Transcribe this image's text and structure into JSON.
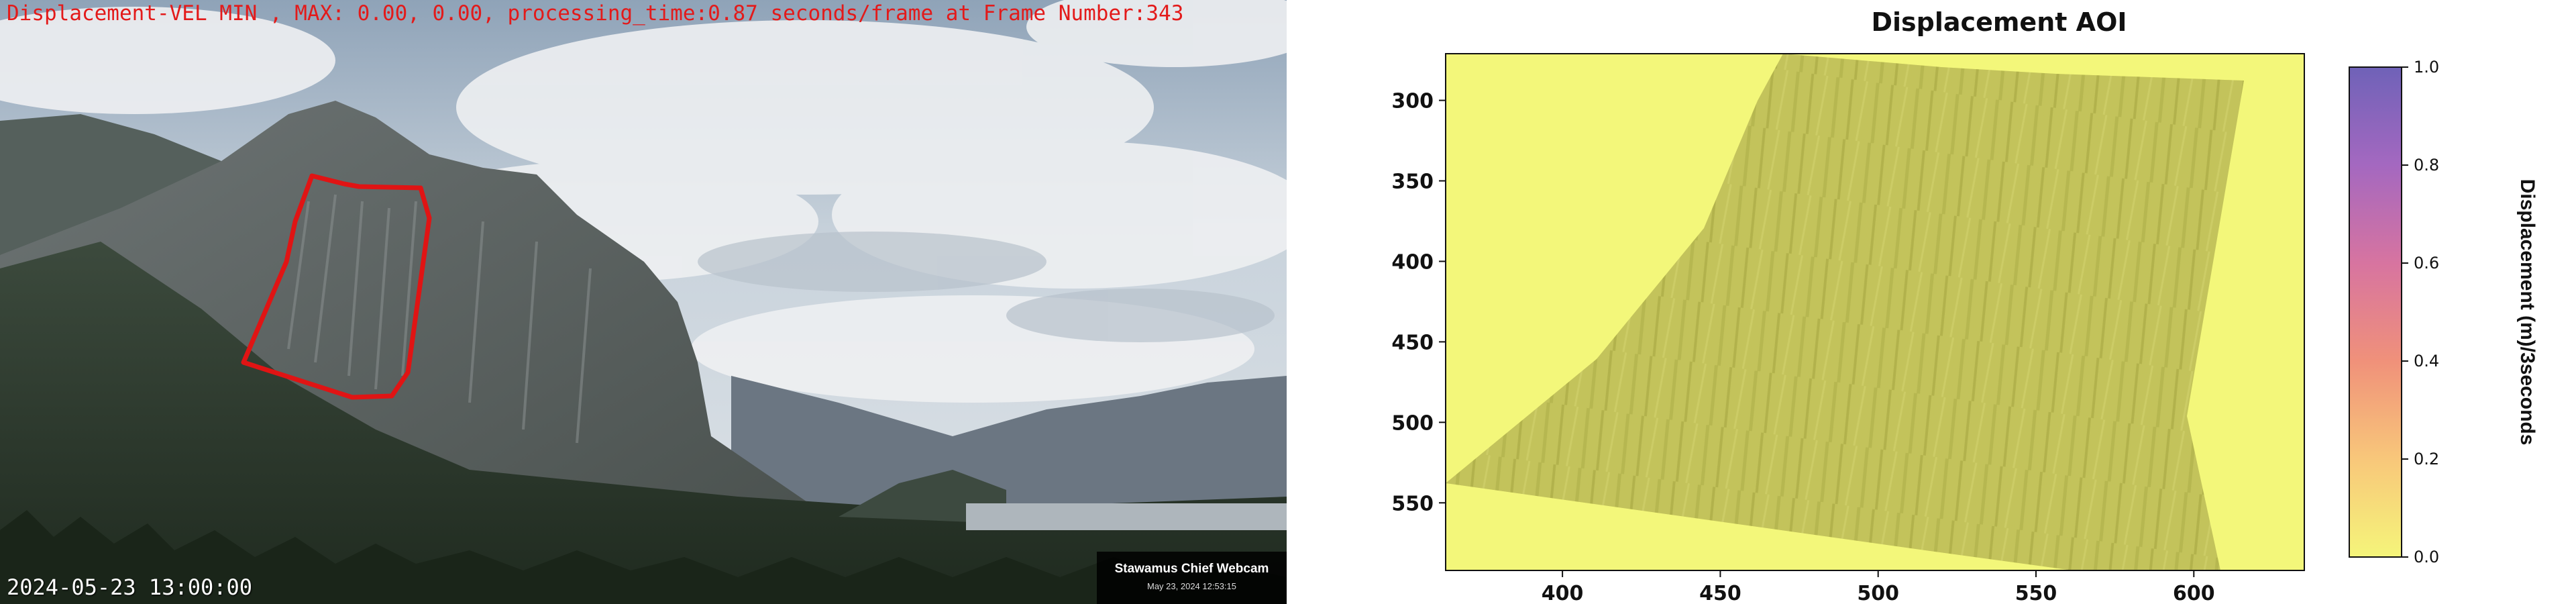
{
  "webcam": {
    "overlay_text": "Displacement-VEL MIN , MAX: 0.00, 0.00, processing_time:0.87 seconds/frame at Frame Number:343",
    "timestamp": "2024-05-23 13:00:00",
    "watermark_title": "Stawamus Chief Webcam",
    "watermark_date": "May 23, 2024 12:53:15",
    "aoi_outline_color": "#e01414",
    "overlay_color": "#e31a1a"
  },
  "chart_data": {
    "type": "heatmap",
    "title": "Displacement AOI",
    "x_ticks": [
      "400",
      "450",
      "500",
      "550",
      "600"
    ],
    "x_tick_values": [
      400,
      450,
      500,
      550,
      600
    ],
    "y_ticks": [
      "300",
      "350",
      "400",
      "450",
      "500",
      "550"
    ],
    "y_tick_values": [
      300,
      350,
      400,
      450,
      500,
      550
    ],
    "xlim": [
      363,
      635
    ],
    "ylim": [
      592,
      271
    ],
    "colorbar": {
      "label": "Displacement (m)/3seconds",
      "ticks": [
        "0.0",
        "0.2",
        "0.4",
        "0.6",
        "0.8",
        "1.0"
      ],
      "tick_values": [
        0.0,
        0.2,
        0.4,
        0.6,
        0.8,
        1.0
      ],
      "range": [
        0.0,
        1.0
      ],
      "colors": [
        "#f5f57a",
        "#f8c77a",
        "#f0917a",
        "#c86fa0",
        "#9a66c0",
        "#6f62b8"
      ]
    },
    "values_min": 0.0,
    "values_max": 0.0,
    "background_color": "#f3f77a",
    "aoi_tint_color": "#c2c25a"
  }
}
